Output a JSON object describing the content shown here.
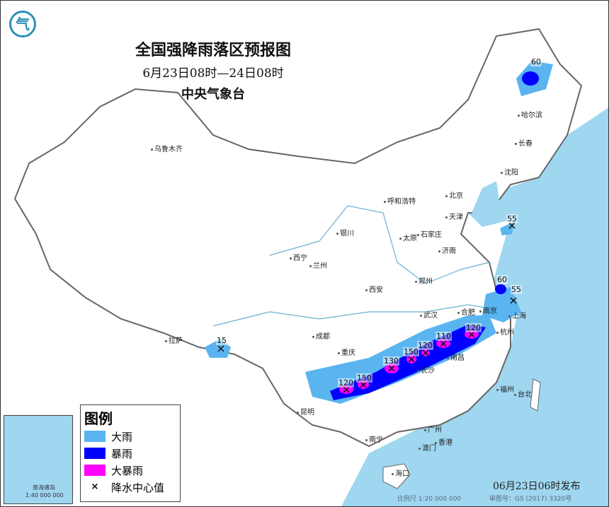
{
  "header": {
    "title": "全国强降雨落区预报图",
    "period": "6月23日08时—24日08时",
    "issuer": "中央气象台"
  },
  "logo": {
    "icon": "cma-logo-icon",
    "color": "#2a8fb5"
  },
  "legend": {
    "title": "图例",
    "items": [
      {
        "label": "大雨",
        "color": "#5ab4f0"
      },
      {
        "label": "暴雨",
        "color": "#0000ff"
      },
      {
        "label": "大暴雨",
        "color": "#ff00ff"
      },
      {
        "label": "降水中心值",
        "icon": "x-mark-icon"
      }
    ]
  },
  "cities": [
    "乌鲁木齐",
    "哈尔滨",
    "长春",
    "沈阳",
    "呼和浩特",
    "北京",
    "天津",
    "银川",
    "太原",
    "石家庄",
    "济南",
    "西宁",
    "兰州",
    "郑州",
    "西安",
    "合肥",
    "南京",
    "上海",
    "武汉",
    "杭州",
    "成都",
    "重庆",
    "拉萨",
    "长沙",
    "南昌",
    "福州",
    "台北",
    "昆明",
    "南宁",
    "广州",
    "香港",
    "澳门",
    "海口"
  ],
  "precip_centers": [
    "60",
    "55",
    "60",
    "55",
    "15",
    "120",
    "150",
    "130",
    "150",
    "120",
    "110",
    "120"
  ],
  "inset": {
    "label": "南海诸岛",
    "scale": "1:40 000 000"
  },
  "footer": {
    "issued": "06月23日06时发布",
    "scale": "比例尺 1:20 000 000",
    "map_number": "审图号：GS (2017) 3320号"
  },
  "colors": {
    "ocean": "#9fd6f0",
    "heavy": "#5ab4f0",
    "storm": "#0000ff",
    "severe": "#ff00ff"
  }
}
